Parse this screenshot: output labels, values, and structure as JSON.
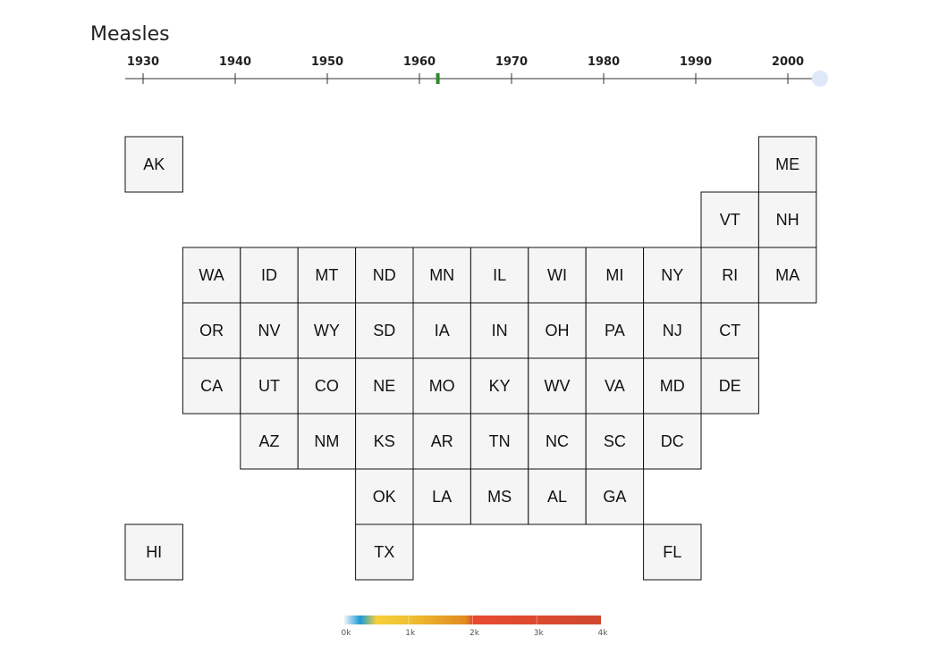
{
  "chart_data": {
    "type": "heatmap",
    "title": "Measles",
    "timeline": {
      "ticks": [
        "1930",
        "1940",
        "1950",
        "1960",
        "1970",
        "1980",
        "1990",
        "2000"
      ],
      "range": [
        1928,
        2003
      ],
      "marker_year": 1962,
      "handle_year": 2003,
      "marker_color": "#2e8b2e",
      "handle_color": "#dde8f8"
    },
    "states": [
      {
        "abbr": "AK",
        "col": 0,
        "row": 0
      },
      {
        "abbr": "ME",
        "col": 11,
        "row": 0
      },
      {
        "abbr": "VT",
        "col": 10,
        "row": 1
      },
      {
        "abbr": "NH",
        "col": 11,
        "row": 1
      },
      {
        "abbr": "WA",
        "col": 1,
        "row": 2
      },
      {
        "abbr": "ID",
        "col": 2,
        "row": 2
      },
      {
        "abbr": "MT",
        "col": 3,
        "row": 2
      },
      {
        "abbr": "ND",
        "col": 4,
        "row": 2
      },
      {
        "abbr": "MN",
        "col": 5,
        "row": 2
      },
      {
        "abbr": "IL",
        "col": 6,
        "row": 2
      },
      {
        "abbr": "WI",
        "col": 7,
        "row": 2
      },
      {
        "abbr": "MI",
        "col": 8,
        "row": 2
      },
      {
        "abbr": "NY",
        "col": 9,
        "row": 2
      },
      {
        "abbr": "RI",
        "col": 10,
        "row": 2
      },
      {
        "abbr": "MA",
        "col": 11,
        "row": 2
      },
      {
        "abbr": "OR",
        "col": 1,
        "row": 3
      },
      {
        "abbr": "NV",
        "col": 2,
        "row": 3
      },
      {
        "abbr": "WY",
        "col": 3,
        "row": 3
      },
      {
        "abbr": "SD",
        "col": 4,
        "row": 3
      },
      {
        "abbr": "IA",
        "col": 5,
        "row": 3
      },
      {
        "abbr": "IN",
        "col": 6,
        "row": 3
      },
      {
        "abbr": "OH",
        "col": 7,
        "row": 3
      },
      {
        "abbr": "PA",
        "col": 8,
        "row": 3
      },
      {
        "abbr": "NJ",
        "col": 9,
        "row": 3
      },
      {
        "abbr": "CT",
        "col": 10,
        "row": 3
      },
      {
        "abbr": "CA",
        "col": 1,
        "row": 4
      },
      {
        "abbr": "UT",
        "col": 2,
        "row": 4
      },
      {
        "abbr": "CO",
        "col": 3,
        "row": 4
      },
      {
        "abbr": "NE",
        "col": 4,
        "row": 4
      },
      {
        "abbr": "MO",
        "col": 5,
        "row": 4
      },
      {
        "abbr": "KY",
        "col": 6,
        "row": 4
      },
      {
        "abbr": "WV",
        "col": 7,
        "row": 4
      },
      {
        "abbr": "VA",
        "col": 8,
        "row": 4
      },
      {
        "abbr": "MD",
        "col": 9,
        "row": 4
      },
      {
        "abbr": "DE",
        "col": 10,
        "row": 4
      },
      {
        "abbr": "AZ",
        "col": 2,
        "row": 5
      },
      {
        "abbr": "NM",
        "col": 3,
        "row": 5
      },
      {
        "abbr": "KS",
        "col": 4,
        "row": 5
      },
      {
        "abbr": "AR",
        "col": 5,
        "row": 5
      },
      {
        "abbr": "TN",
        "col": 6,
        "row": 5
      },
      {
        "abbr": "NC",
        "col": 7,
        "row": 5
      },
      {
        "abbr": "SC",
        "col": 8,
        "row": 5
      },
      {
        "abbr": "DC",
        "col": 9,
        "row": 5
      },
      {
        "abbr": "OK",
        "col": 4,
        "row": 6
      },
      {
        "abbr": "LA",
        "col": 5,
        "row": 6
      },
      {
        "abbr": "MS",
        "col": 6,
        "row": 6
      },
      {
        "abbr": "AL",
        "col": 7,
        "row": 6
      },
      {
        "abbr": "GA",
        "col": 8,
        "row": 6
      },
      {
        "abbr": "HI",
        "col": 0,
        "row": 7
      },
      {
        "abbr": "TX",
        "col": 4,
        "row": 7
      },
      {
        "abbr": "FL",
        "col": 9,
        "row": 7
      }
    ],
    "legend": {
      "labels": [
        "0k",
        "1k",
        "2k",
        "3k",
        "4k"
      ],
      "range": [
        0,
        4000
      ],
      "stops": [
        {
          "value": 0,
          "color": "#f0f4fa"
        },
        {
          "value": 250,
          "color": "#1a9ad6"
        },
        {
          "value": 500,
          "color": "#f5d03a"
        },
        {
          "value": 1000,
          "color": "#f0c030"
        },
        {
          "value": 1900,
          "color": "#e08a20"
        },
        {
          "value": 2000,
          "color": "#e84a30"
        },
        {
          "value": 4000,
          "color": "#d04830"
        }
      ]
    }
  }
}
